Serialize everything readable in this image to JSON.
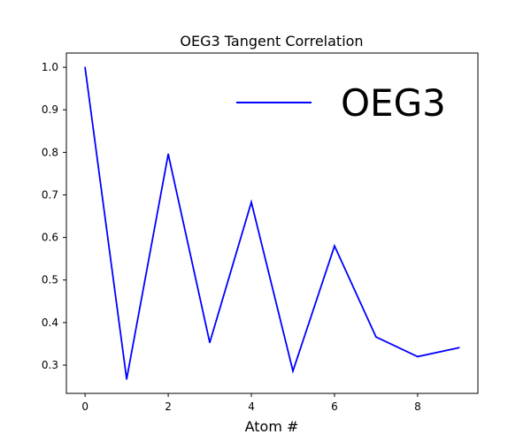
{
  "chart_data": {
    "type": "line",
    "title": "OEG3 Tangent Correlation",
    "xlabel": "Atom #",
    "ylabel": "",
    "xlim": [
      -0.45,
      9.45
    ],
    "ylim": [
      0.2335,
      1.0335
    ],
    "x_ticks": [
      0,
      2,
      4,
      6,
      8
    ],
    "x_tick_labels": [
      "0",
      "2",
      "4",
      "6",
      "8"
    ],
    "y_ticks": [
      0.3,
      0.4,
      0.5,
      0.6,
      0.7,
      0.8,
      0.9,
      1.0
    ],
    "y_tick_labels": [
      "0.3",
      "0.4",
      "0.5",
      "0.6",
      "0.7",
      "0.8",
      "0.9",
      "1.0"
    ],
    "grid": false,
    "legend_position": "upper-right",
    "series": [
      {
        "name": "OEG3",
        "color": "#0000ff",
        "x": [
          0,
          1,
          2,
          3,
          4,
          5,
          6,
          7,
          8,
          9
        ],
        "values": [
          1.0,
          0.267,
          0.796,
          0.353,
          0.683,
          0.286,
          0.58,
          0.366,
          0.32,
          0.341
        ]
      }
    ]
  }
}
